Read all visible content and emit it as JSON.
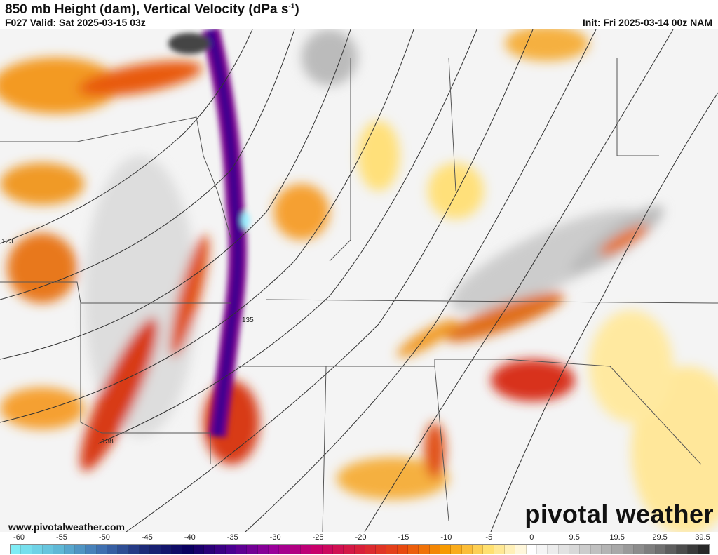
{
  "header": {
    "title": "850 mb Height (dam), Vertical Velocity (dPa s",
    "title_sup": "-1",
    "title_end": ")",
    "valid": "F027 Valid: Sat 2025-03-15 03z",
    "init": "Init: Fri 2025-03-14 00z NAM"
  },
  "map": {
    "contour_labels": [
      "123",
      "135",
      "138"
    ]
  },
  "footer": {
    "website": "www.pivotalweather.com",
    "brand": "pivotal weather"
  },
  "colorbar": {
    "ticks": [
      "-60",
      "-55",
      "-50",
      "-45",
      "-40",
      "-35",
      "-30",
      "-25",
      "-20",
      "-15",
      "-10",
      "-5",
      "0",
      "9.5",
      "19.5",
      "29.5",
      "39.5"
    ],
    "colors": [
      "#7fecf5",
      "#5fb8d6",
      "#3f6fb0",
      "#1c2a78",
      "#0a0060",
      "#4a0090",
      "#9a009a",
      "#c8006a",
      "#d8203a",
      "#e84a10",
      "#f79a00",
      "#ffe070",
      "#ffffff",
      "#d8d8d8",
      "#a8a8a8",
      "#707070",
      "#282828"
    ]
  }
}
